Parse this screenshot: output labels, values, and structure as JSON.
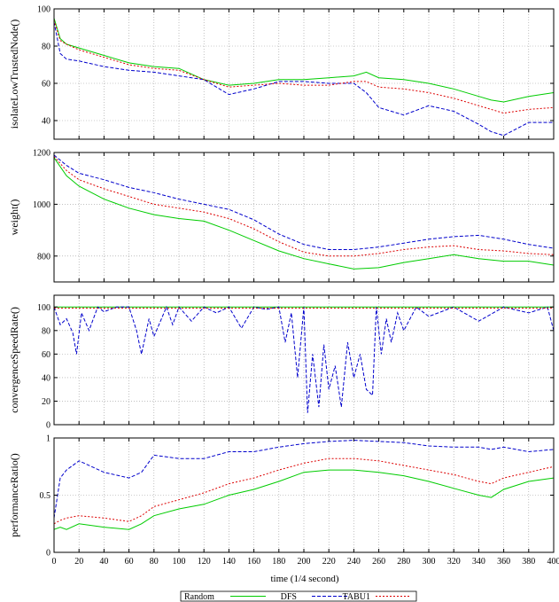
{
  "figure": {
    "xlabel": "time (1/4 second)",
    "legend": [
      {
        "label": "Random",
        "color": "#00cc00",
        "dash": "solid"
      },
      {
        "label": "DFS",
        "color": "#0000cc",
        "dash": "dashed"
      },
      {
        "label": "TABU1",
        "color": "#dd0000",
        "dash": "dotted"
      }
    ]
  },
  "chart_data": [
    {
      "type": "line",
      "ylabel": "isolateLowTrustedNode()",
      "xlim": [
        0,
        400
      ],
      "ylim": [
        30,
        100
      ],
      "xticks": [
        0,
        20,
        40,
        60,
        80,
        100,
        120,
        140,
        160,
        180,
        200,
        220,
        240,
        260,
        280,
        300,
        320,
        340,
        360,
        380,
        400
      ],
      "yticks": [
        40,
        60,
        80,
        100
      ],
      "grid": true,
      "series": [
        {
          "name": "Random",
          "x": [
            0,
            5,
            10,
            20,
            40,
            60,
            80,
            100,
            120,
            140,
            160,
            180,
            200,
            220,
            240,
            250,
            260,
            280,
            300,
            320,
            340,
            350,
            360,
            380,
            400
          ],
          "y": [
            95,
            84,
            81,
            79,
            75,
            71,
            69,
            68,
            62,
            59,
            60,
            62,
            62,
            63,
            64,
            66,
            63,
            62,
            60,
            57,
            53,
            51,
            50,
            53,
            55
          ]
        },
        {
          "name": "DFS",
          "x": [
            0,
            5,
            10,
            20,
            40,
            60,
            80,
            100,
            120,
            140,
            160,
            180,
            200,
            220,
            240,
            250,
            260,
            280,
            300,
            320,
            340,
            350,
            360,
            380,
            400
          ],
          "y": [
            93,
            76,
            73,
            72,
            69,
            67,
            66,
            64,
            62,
            54,
            57,
            61,
            61,
            60,
            60,
            55,
            47,
            43,
            48,
            45,
            38,
            34,
            32,
            39,
            39
          ]
        },
        {
          "name": "TABU1",
          "x": [
            0,
            5,
            10,
            20,
            40,
            60,
            80,
            100,
            120,
            140,
            160,
            180,
            200,
            220,
            240,
            250,
            260,
            280,
            300,
            320,
            340,
            350,
            360,
            380,
            400
          ],
          "y": [
            94,
            83,
            81,
            78,
            74,
            70,
            68,
            67,
            62,
            58,
            59,
            60,
            59,
            59,
            61,
            61,
            58,
            57,
            55,
            52,
            48,
            46,
            44,
            46,
            47
          ]
        }
      ]
    },
    {
      "type": "line",
      "ylabel": "weight()",
      "xlim": [
        0,
        400
      ],
      "ylim": [
        700,
        1200
      ],
      "xticks": [
        0,
        20,
        40,
        60,
        80,
        100,
        120,
        140,
        160,
        180,
        200,
        220,
        240,
        260,
        280,
        300,
        320,
        340,
        360,
        380,
        400
      ],
      "yticks": [
        800,
        1000,
        1200
      ],
      "grid": true,
      "series": [
        {
          "name": "Random",
          "x": [
            0,
            10,
            20,
            40,
            60,
            80,
            100,
            120,
            140,
            160,
            180,
            200,
            220,
            240,
            260,
            280,
            300,
            320,
            340,
            360,
            380,
            400
          ],
          "y": [
            1180,
            1110,
            1070,
            1020,
            985,
            960,
            945,
            935,
            900,
            860,
            820,
            790,
            770,
            750,
            755,
            775,
            790,
            805,
            790,
            780,
            780,
            765
          ]
        },
        {
          "name": "DFS",
          "x": [
            0,
            10,
            20,
            40,
            60,
            80,
            100,
            120,
            140,
            160,
            180,
            200,
            220,
            240,
            260,
            280,
            300,
            320,
            340,
            360,
            380,
            400
          ],
          "y": [
            1190,
            1150,
            1120,
            1095,
            1065,
            1045,
            1020,
            1000,
            980,
            940,
            885,
            845,
            825,
            825,
            835,
            850,
            865,
            875,
            880,
            865,
            845,
            830
          ]
        },
        {
          "name": "TABU1",
          "x": [
            0,
            10,
            20,
            40,
            60,
            80,
            100,
            120,
            140,
            160,
            180,
            200,
            220,
            240,
            260,
            280,
            300,
            320,
            340,
            360,
            380,
            400
          ],
          "y": [
            1185,
            1130,
            1095,
            1060,
            1030,
            1000,
            985,
            970,
            945,
            905,
            855,
            815,
            800,
            800,
            810,
            825,
            835,
            840,
            825,
            820,
            810,
            805
          ]
        }
      ]
    },
    {
      "type": "line",
      "ylabel": "convergenceSpeedRate()",
      "xlim": [
        0,
        400
      ],
      "ylim": [
        0,
        110
      ],
      "xticks": [
        0,
        20,
        40,
        60,
        80,
        100,
        120,
        140,
        160,
        180,
        200,
        220,
        240,
        260,
        280,
        300,
        320,
        340,
        360,
        380,
        400
      ],
      "yticks": [
        0,
        20,
        40,
        60,
        80,
        100
      ],
      "grid": true,
      "series": [
        {
          "name": "Random",
          "x": [
            0,
            400
          ],
          "y": [
            100,
            100
          ]
        },
        {
          "name": "DFS",
          "x": [
            0,
            5,
            10,
            15,
            18,
            22,
            28,
            35,
            40,
            50,
            60,
            66,
            70,
            76,
            80,
            90,
            95,
            100,
            110,
            120,
            130,
            140,
            150,
            160,
            170,
            180,
            185,
            190,
            195,
            200,
            203,
            207,
            212,
            216,
            220,
            225,
            230,
            235,
            240,
            245,
            250,
            255,
            258,
            262,
            266,
            270,
            275,
            280,
            290,
            300,
            320,
            340,
            360,
            380,
            395,
            400
          ],
          "y": [
            100,
            85,
            90,
            78,
            60,
            95,
            80,
            100,
            96,
            100,
            100,
            80,
            60,
            90,
            75,
            100,
            85,
            100,
            88,
            100,
            95,
            100,
            82,
            100,
            98,
            100,
            70,
            95,
            40,
            100,
            10,
            60,
            15,
            68,
            30,
            50,
            15,
            70,
            40,
            60,
            30,
            25,
            100,
            60,
            90,
            70,
            95,
            80,
            100,
            92,
            100,
            88,
            100,
            95,
            100,
            80
          ]
        },
        {
          "name": "TABU1",
          "x": [
            0,
            400
          ],
          "y": [
            99,
            99
          ]
        }
      ]
    },
    {
      "type": "line",
      "ylabel": "performanceRatio()",
      "xlim": [
        0,
        400
      ],
      "ylim": [
        0,
        1
      ],
      "xticks": [
        0,
        20,
        40,
        60,
        80,
        100,
        120,
        140,
        160,
        180,
        200,
        220,
        240,
        260,
        280,
        300,
        320,
        340,
        360,
        380,
        400
      ],
      "yticks": [
        0,
        0.5,
        1
      ],
      "grid": true,
      "series": [
        {
          "name": "Random",
          "x": [
            0,
            5,
            10,
            20,
            40,
            60,
            70,
            80,
            100,
            120,
            140,
            160,
            180,
            200,
            220,
            240,
            260,
            280,
            300,
            320,
            340,
            350,
            360,
            380,
            400
          ],
          "y": [
            0.2,
            0.22,
            0.2,
            0.25,
            0.22,
            0.2,
            0.25,
            0.32,
            0.38,
            0.42,
            0.5,
            0.55,
            0.62,
            0.7,
            0.72,
            0.72,
            0.7,
            0.67,
            0.62,
            0.56,
            0.5,
            0.48,
            0.55,
            0.62,
            0.65
          ]
        },
        {
          "name": "DFS",
          "x": [
            0,
            5,
            10,
            20,
            40,
            60,
            70,
            80,
            100,
            120,
            140,
            160,
            180,
            200,
            220,
            240,
            260,
            280,
            300,
            320,
            340,
            350,
            360,
            380,
            400
          ],
          "y": [
            0.3,
            0.65,
            0.72,
            0.8,
            0.7,
            0.65,
            0.7,
            0.85,
            0.82,
            0.82,
            0.88,
            0.88,
            0.92,
            0.95,
            0.97,
            0.98,
            0.97,
            0.96,
            0.93,
            0.92,
            0.92,
            0.9,
            0.92,
            0.88,
            0.9
          ]
        },
        {
          "name": "TABU1",
          "x": [
            0,
            5,
            10,
            20,
            40,
            60,
            70,
            80,
            100,
            120,
            140,
            160,
            180,
            200,
            220,
            240,
            260,
            280,
            300,
            320,
            340,
            350,
            360,
            380,
            400
          ],
          "y": [
            0.25,
            0.28,
            0.3,
            0.32,
            0.3,
            0.27,
            0.32,
            0.4,
            0.46,
            0.52,
            0.6,
            0.65,
            0.72,
            0.78,
            0.82,
            0.82,
            0.8,
            0.76,
            0.72,
            0.68,
            0.62,
            0.6,
            0.65,
            0.7,
            0.75
          ]
        }
      ]
    }
  ]
}
